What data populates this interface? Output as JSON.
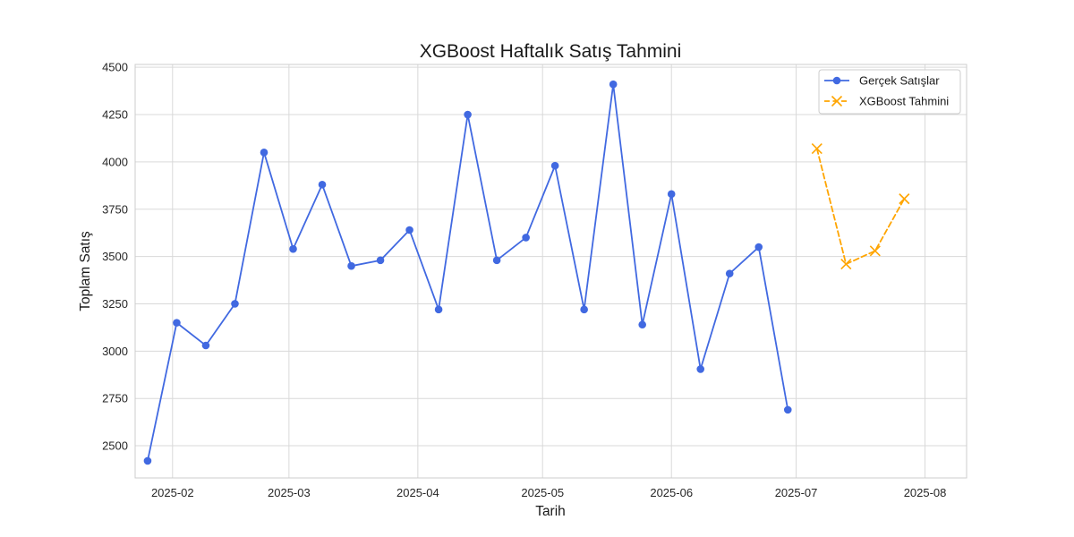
{
  "chart_data": {
    "type": "line",
    "title": "XGBoost Haftalık Satış Tahmini",
    "xlabel": "Tarih",
    "ylabel": "Toplam Satış",
    "ylim": [
      2330,
      4515
    ],
    "xlim": [
      "2025-01-23",
      "2025-08-11"
    ],
    "x_ticks": [
      "2025-02-01",
      "2025-03-01",
      "2025-04-01",
      "2025-05-01",
      "2025-06-01",
      "2025-07-01",
      "2025-08-01"
    ],
    "x_tick_labels": [
      "2025-02",
      "2025-03",
      "2025-04",
      "2025-05",
      "2025-06",
      "2025-07",
      "2025-08"
    ],
    "y_ticks": [
      2500,
      2750,
      3000,
      3250,
      3500,
      3750,
      4000,
      4250,
      4500
    ],
    "grid": true,
    "legend_position": "top-right",
    "series": [
      {
        "name": "Gerçek Satışlar",
        "color": "#4169e1",
        "line_style": "solid",
        "marker": "circle",
        "x": [
          "2025-01-26",
          "2025-02-02",
          "2025-02-09",
          "2025-02-16",
          "2025-02-23",
          "2025-03-02",
          "2025-03-09",
          "2025-03-16",
          "2025-03-23",
          "2025-03-30",
          "2025-04-06",
          "2025-04-13",
          "2025-04-20",
          "2025-04-27",
          "2025-05-04",
          "2025-05-11",
          "2025-05-18",
          "2025-05-25",
          "2025-06-01",
          "2025-06-08",
          "2025-06-15",
          "2025-06-22",
          "2025-06-29"
        ],
        "values": [
          2420,
          3150,
          3030,
          3250,
          4050,
          3540,
          3880,
          3450,
          3480,
          3640,
          3220,
          4250,
          3480,
          3600,
          3980,
          3220,
          4410,
          3140,
          3830,
          2905,
          3410,
          3550,
          2690
        ]
      },
      {
        "name": "XGBoost Tahmini",
        "color": "#ffa500",
        "line_style": "dashed",
        "marker": "x",
        "x": [
          "2025-07-06",
          "2025-07-13",
          "2025-07-20",
          "2025-07-27"
        ],
        "values": [
          4070,
          3460,
          3530,
          3805
        ]
      }
    ]
  }
}
